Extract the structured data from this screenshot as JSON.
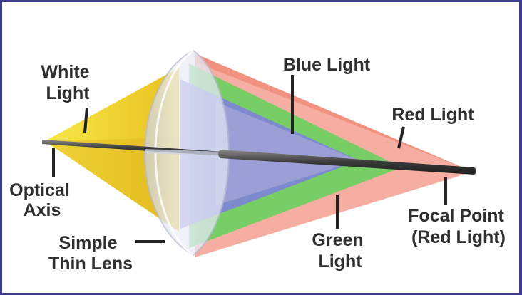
{
  "labels": {
    "white_light": [
      "White",
      "Light"
    ],
    "optical_axis": [
      "Optical",
      "Axis"
    ],
    "simple_thin_lens": [
      "Simple",
      "Thin Lens"
    ],
    "blue_light": "Blue Light",
    "red_light": "Red Light",
    "green_light": [
      "Green",
      "Light"
    ],
    "focal_point": [
      "Focal Point",
      "(Red Light)"
    ]
  },
  "colors": {
    "white_light_cone": "#f4dc37",
    "lens": "#dde2f0",
    "red_light": "#f29a8a",
    "green_light": "#5fd35a",
    "blue_light": "#7f7ee0",
    "axis_rod": "#4a4a4a",
    "label_text": "#2f2f2f",
    "border": "#3d3c8f"
  }
}
